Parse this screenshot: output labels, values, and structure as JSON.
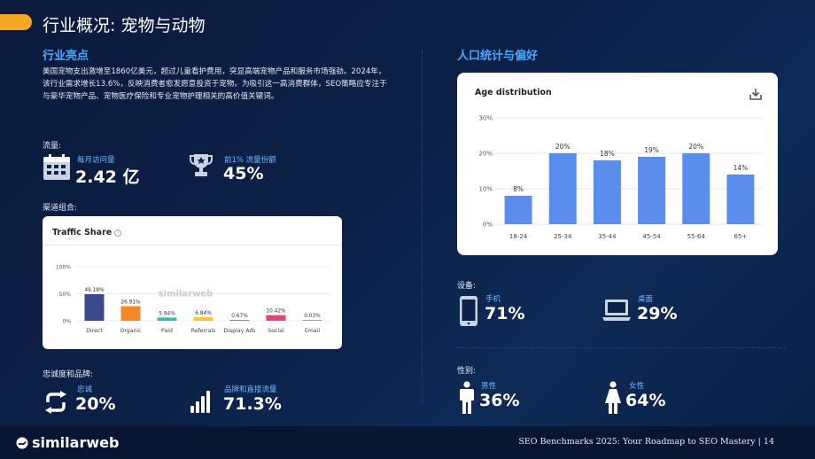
{
  "header": {
    "title": "行业概况: 宠物与动物"
  },
  "highlights": {
    "title": "行业亮点",
    "text": "美国宠物支出激增至1860亿美元，超过儿童看护费用，突显高端宠物产品和服务市场强劲。2024年，该行业需求增长13.6%，反映消费者愈发愿意投资于宠物。为吸引这一高消费群体，SEO策略应专注于与豪华宠物产品、宠物医疗保险和专业宠物护理相关的高价值关键词。"
  },
  "traffic": {
    "label": "流量:",
    "monthly_label": "每月访问量",
    "monthly_value": "2.42 亿",
    "share_label": "前1% 流量份额",
    "share_value": "45%",
    "icons": [
      "calendar-icon",
      "trophy-icon"
    ]
  },
  "channel": {
    "label": "渠道组合:",
    "card_title": "Traffic Share",
    "watermark": "similarweb"
  },
  "loyalty": {
    "label": "忠诚度和品牌:",
    "loyalty_label": "忠诚",
    "loyalty_value": "20%",
    "brand_label": "品牌和直接流量",
    "brand_value": "71.3%"
  },
  "demographics": {
    "title": "人口统计与偏好",
    "card_title": "Age distribution"
  },
  "devices": {
    "label": "设备:",
    "mobile_label": "手机",
    "mobile_value": "71%",
    "desktop_label": "桌面",
    "desktop_value": "29%"
  },
  "gender": {
    "label": "性别:",
    "male_label": "男性",
    "male_value": "36%",
    "female_label": "女性",
    "female_value": "64%"
  },
  "footer": {
    "logo": "similarweb",
    "text": "SEO Benchmarks 2025: Your Roadmap to SEO Mastery | 14"
  },
  "colors": {
    "accent": "#f5a623",
    "section_blue": "#4aa8ff",
    "age_bar": "#5b8def"
  },
  "chart_data": [
    {
      "type": "bar",
      "title": "Traffic Share",
      "categories": [
        "Direct",
        "Organic",
        "Paid",
        "Referrals",
        "Display Ads",
        "Social",
        "Email"
      ],
      "values": [
        49.18,
        26.91,
        5.94,
        6.84,
        0.67,
        10.42,
        0.03
      ],
      "value_labels": [
        "49.18%",
        "26.91%",
        "5.94%",
        "6.84%",
        "0.67%",
        "10.42%",
        "0.03%"
      ],
      "colors": [
        "#3b4a8c",
        "#f08a24",
        "#3fb8a6",
        "#f5c542",
        "#8e7cc3",
        "#e0457b",
        "#9aa3b0"
      ],
      "y_ticks": [
        "0%",
        "50%",
        "100%"
      ],
      "ylim": [
        0,
        100
      ],
      "grid": true
    },
    {
      "type": "bar",
      "title": "Age distribution",
      "categories": [
        "18-24",
        "25-34",
        "35-44",
        "45-54",
        "55-64",
        "65+"
      ],
      "values": [
        8,
        20,
        18,
        19,
        20,
        14
      ],
      "value_labels": [
        "8%",
        "20%",
        "18%",
        "19%",
        "20%",
        "14%"
      ],
      "y_ticks": [
        "0%",
        "10%",
        "20%",
        "30%"
      ],
      "ylim": [
        0,
        30
      ],
      "grid": true
    }
  ]
}
